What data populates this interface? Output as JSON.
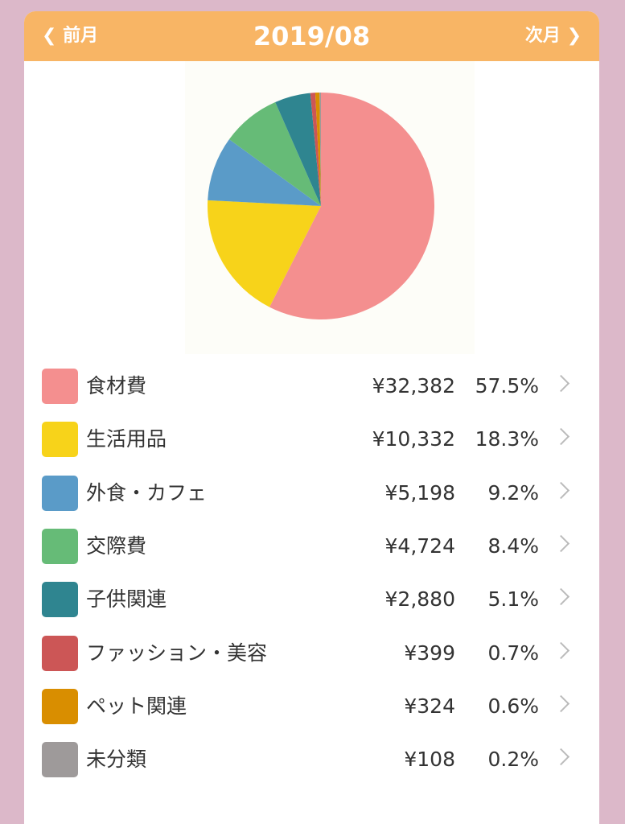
{
  "header": {
    "prev": "前月",
    "title": "2019/08",
    "next": "次月"
  },
  "chart_data": {
    "type": "pie",
    "categories": [
      "食材費",
      "生活用品",
      "外食・カフェ",
      "交際費",
      "子供関連",
      "ファッション・美容",
      "ペット関連",
      "未分類"
    ],
    "values": [
      57.5,
      18.3,
      9.2,
      8.4,
      5.1,
      0.7,
      0.6,
      0.2
    ],
    "value_labels": [
      "57.5%",
      "18.3%",
      "9.2%",
      "8.4%",
      "5.1%",
      "0.7%",
      "0.6%",
      "0.2%"
    ],
    "amounts": [
      32382,
      10332,
      5198,
      4724,
      2880,
      399,
      324,
      108
    ],
    "amount_labels": [
      "¥32,382",
      "¥10,332",
      "¥5,198",
      "¥4,724",
      "¥2,880",
      "¥399",
      "¥324",
      "¥108"
    ],
    "colors": [
      "#f48f8f",
      "#f7d31a",
      "#5a9bc8",
      "#66bb77",
      "#2f8590",
      "#cc5656",
      "#d98e00",
      "#9e9a9a"
    ]
  }
}
